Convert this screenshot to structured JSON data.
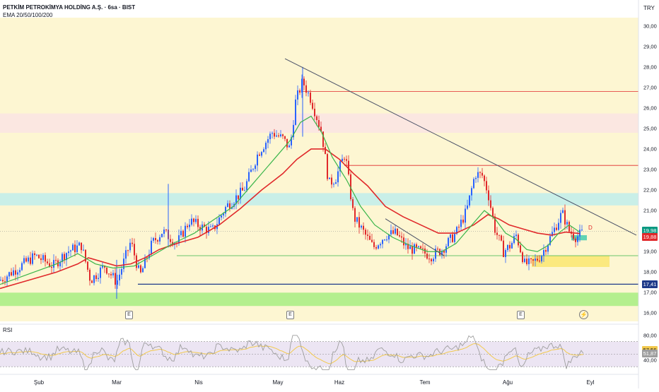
{
  "header": {
    "title": "PETKİM PETROKİMYA HOLDİNG A.Ş. · 6sa · BIST",
    "indicator": "EMA 20/50/100/200",
    "currency": "TRY",
    "rsi_label": "RSI"
  },
  "colors": {
    "up": "#2962ff",
    "down": "#e0292b",
    "ema_fast": "#3ab54a",
    "ema_slow": "#e0292b",
    "trend": "#4a5066",
    "band_yellow": "#fdf6d2",
    "band_pink": "#fbe7e1",
    "band_teal": "#c9efe8",
    "band_green": "#b4ef8e",
    "rsi_line": "#9e9e9e",
    "rsi_ma": "#f2c94c"
  },
  "earnings_marker": "E",
  "dividend_marker": "D",
  "chart_data": {
    "type": "candlestick",
    "y_axis": {
      "range": [
        15.6,
        30.4
      ],
      "ticks": [
        "30,00",
        "29,00",
        "28,00",
        "27,00",
        "26,00",
        "25,00",
        "24,00",
        "23,00",
        "22,00",
        "21,00",
        "20,00",
        "19,00",
        "18,00",
        "17,00",
        "16,00"
      ],
      "tick_values": [
        30,
        29,
        28,
        27,
        26,
        25,
        24,
        23,
        22,
        21,
        20,
        19,
        18,
        17,
        16
      ]
    },
    "x_axis": {
      "ticks": [
        "Şub",
        "Mar",
        "Nis",
        "May",
        "Haz",
        "Tem",
        "Ağu",
        "Eyl"
      ]
    },
    "price_labels": [
      {
        "value": 19.98,
        "label": "19,98",
        "color": "#089981"
      },
      {
        "value": 19.88,
        "label": "19,88",
        "color": "#e0292b"
      },
      {
        "value": 17.41,
        "label": "17,41",
        "color": "#1e3a8a"
      }
    ],
    "series_anchors": {
      "close_path": [
        [
          0,
          17.6
        ],
        [
          25,
          18.2
        ],
        [
          50,
          18.8
        ],
        [
          75,
          18.3
        ],
        [
          95,
          19.0
        ],
        [
          115,
          19.3
        ],
        [
          128,
          17.6
        ],
        [
          148,
          18.3
        ],
        [
          165,
          17.5
        ],
        [
          185,
          19.5
        ],
        [
          198,
          17.8
        ],
        [
          215,
          19.4
        ],
        [
          230,
          20.0
        ],
        [
          250,
          19.4
        ],
        [
          268,
          20.5
        ],
        [
          285,
          20.2
        ],
        [
          300,
          20.0
        ],
        [
          320,
          21.2
        ],
        [
          345,
          22.0
        ],
        [
          365,
          23.8
        ],
        [
          385,
          24.8
        ],
        [
          400,
          24.5
        ],
        [
          410,
          24.0
        ],
        [
          418,
          26.3
        ],
        [
          428,
          27.3
        ],
        [
          440,
          26.4
        ],
        [
          455,
          24.8
        ],
        [
          465,
          22.3
        ],
        [
          475,
          22.6
        ],
        [
          488,
          23.8
        ],
        [
          500,
          20.7
        ],
        [
          515,
          19.9
        ],
        [
          528,
          19.2
        ],
        [
          545,
          19.8
        ],
        [
          560,
          19.9
        ],
        [
          575,
          19.2
        ],
        [
          595,
          19.0
        ],
        [
          610,
          18.8
        ],
        [
          625,
          19.1
        ],
        [
          645,
          19.9
        ],
        [
          660,
          21.0
        ],
        [
          672,
          22.8
        ],
        [
          682,
          22.7
        ],
        [
          690,
          21.9
        ],
        [
          700,
          20.1
        ],
        [
          712,
          19.0
        ],
        [
          722,
          19.3
        ],
        [
          730,
          19.8
        ],
        [
          742,
          18.4
        ],
        [
          752,
          18.4
        ],
        [
          765,
          18.8
        ],
        [
          780,
          19.8
        ],
        [
          795,
          20.9
        ],
        [
          805,
          20.0
        ],
        [
          815,
          19.7
        ],
        [
          825,
          19.95
        ]
      ],
      "ema_fast": [
        [
          0,
          17.4
        ],
        [
          40,
          17.9
        ],
        [
          80,
          18.4
        ],
        [
          110,
          18.9
        ],
        [
          135,
          18.4
        ],
        [
          160,
          18.2
        ],
        [
          190,
          18.3
        ],
        [
          215,
          18.8
        ],
        [
          245,
          19.4
        ],
        [
          275,
          19.9
        ],
        [
          300,
          20.5
        ],
        [
          330,
          21.2
        ],
        [
          360,
          22.4
        ],
        [
          390,
          23.6
        ],
        [
          410,
          24.4
        ],
        [
          425,
          25.3
        ],
        [
          440,
          25.6
        ],
        [
          455,
          24.8
        ],
        [
          470,
          23.6
        ],
        [
          490,
          22.5
        ],
        [
          510,
          21.2
        ],
        [
          530,
          20.3
        ],
        [
          555,
          19.7
        ],
        [
          580,
          19.3
        ],
        [
          605,
          19.0
        ],
        [
          625,
          19.0
        ],
        [
          645,
          19.4
        ],
        [
          665,
          20.2
        ],
        [
          685,
          21.0
        ],
        [
          700,
          20.6
        ],
        [
          715,
          19.9
        ],
        [
          730,
          19.6
        ],
        [
          745,
          19.1
        ],
        [
          760,
          19.0
        ],
        [
          775,
          19.3
        ],
        [
          790,
          19.9
        ],
        [
          805,
          20.3
        ],
        [
          820,
          19.95
        ]
      ],
      "ema_slow": [
        [
          0,
          17.2
        ],
        [
          40,
          17.6
        ],
        [
          80,
          18.0
        ],
        [
          110,
          18.4
        ],
        [
          125,
          18.7
        ],
        [
          145,
          18.5
        ],
        [
          165,
          18.3
        ],
        [
          185,
          18.4
        ],
        [
          205,
          18.7
        ],
        [
          225,
          19.1
        ],
        [
          250,
          19.4
        ],
        [
          280,
          19.7
        ],
        [
          310,
          20.3
        ],
        [
          340,
          21.1
        ],
        [
          370,
          22.0
        ],
        [
          400,
          22.8
        ],
        [
          420,
          23.5
        ],
        [
          440,
          24.0
        ],
        [
          460,
          24.0
        ],
        [
          480,
          23.5
        ],
        [
          500,
          22.8
        ],
        [
          520,
          22.2
        ],
        [
          545,
          21.2
        ],
        [
          570,
          20.7
        ],
        [
          595,
          20.3
        ],
        [
          620,
          19.9
        ],
        [
          645,
          19.9
        ],
        [
          670,
          20.3
        ],
        [
          690,
          20.8
        ],
        [
          705,
          20.6
        ],
        [
          720,
          20.3
        ],
        [
          740,
          20.1
        ],
        [
          760,
          19.9
        ],
        [
          780,
          19.8
        ],
        [
          800,
          19.95
        ],
        [
          820,
          19.88
        ]
      ],
      "trend_lines": [
        {
          "from": [
            403,
            28.4
          ],
          "to": [
            900,
            19.8
          ],
          "kind": "descending"
        },
        {
          "from": [
            545,
            20.6
          ],
          "to": [
            628,
            18.8
          ],
          "kind": "descending"
        }
      ],
      "horizontal_levels": [
        {
          "value": 26.8,
          "x_from": 428,
          "x_to": 903,
          "color": "#e0292b"
        },
        {
          "value": 23.2,
          "x_from": 487,
          "x_to": 903,
          "color": "#e0292b"
        },
        {
          "value": 18.8,
          "x_from": 250,
          "x_to": 903,
          "color": "#3ab54a"
        },
        {
          "value": 17.41,
          "x_from": 195,
          "x_to": 903,
          "color": "#1e3a8a"
        }
      ]
    },
    "zones": [
      {
        "from": 25.73,
        "to": 24.79,
        "fill": "band_pink"
      },
      {
        "from": 21.85,
        "to": 21.25,
        "fill": "band_teal"
      },
      {
        "from": 17.0,
        "to": 16.35,
        "fill": "band_green"
      }
    ],
    "rsi": {
      "ticks": [
        "80,00",
        "40,00"
      ],
      "tick_values": [
        80,
        40
      ],
      "current_labels": [
        {
          "value": 57.56,
          "label": "57,56"
        },
        {
          "value": 51.87,
          "label": "51,87"
        }
      ],
      "range": [
        20,
        90
      ]
    }
  }
}
